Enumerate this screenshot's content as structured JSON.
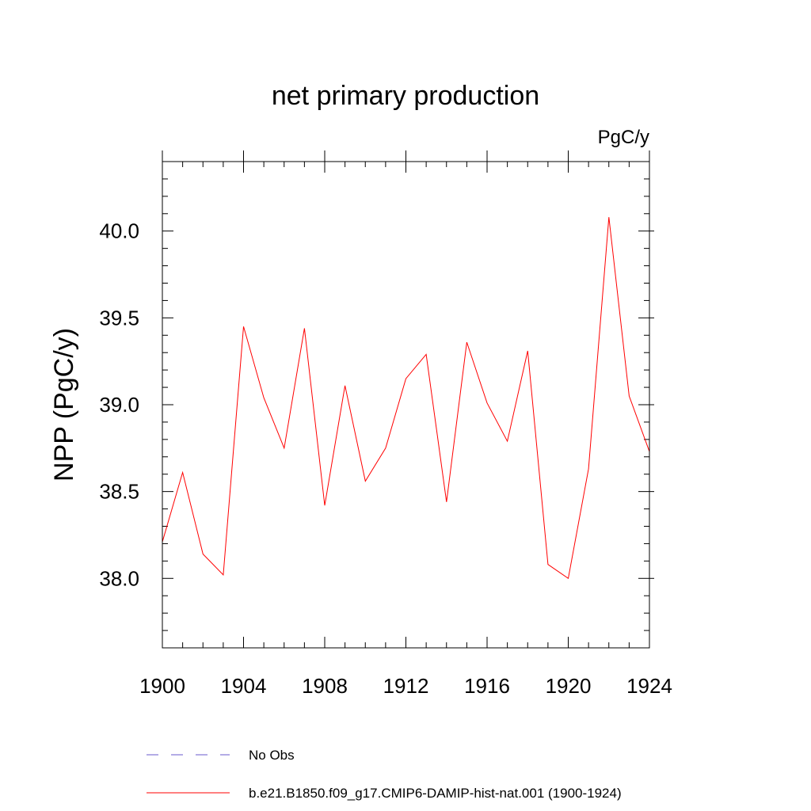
{
  "chart_data": {
    "type": "line",
    "title": "net primary production",
    "units_label": "PgC/y",
    "ylabel": "NPP  (PgC/y)",
    "xlabel": "",
    "xlim": [
      1900,
      1924
    ],
    "ylim": [
      37.6,
      40.4
    ],
    "x_ticks": [
      1900,
      1904,
      1908,
      1912,
      1916,
      1920,
      1924
    ],
    "x_tick_labels": [
      "1900",
      "1904",
      "1908",
      "1912",
      "1916",
      "1920",
      "1924"
    ],
    "y_ticks": [
      38.0,
      38.5,
      39.0,
      39.5,
      40.0
    ],
    "y_tick_labels": [
      "38.0",
      "38.5",
      "39.0",
      "39.5",
      "40.0"
    ],
    "grid": false,
    "legend_position": "bottom",
    "series": [
      {
        "name": "b.e21.B1850.f09_g17.CMIP6-DAMIP-hist-nat.001 (1900-1924)",
        "color": "#ff0000",
        "style": "solid",
        "x": [
          1900,
          1901,
          1902,
          1903,
          1904,
          1905,
          1906,
          1907,
          1908,
          1909,
          1910,
          1911,
          1912,
          1913,
          1914,
          1915,
          1916,
          1917,
          1918,
          1919,
          1920,
          1921,
          1922,
          1923,
          1924
        ],
        "values": [
          38.21,
          38.61,
          38.14,
          38.02,
          39.45,
          39.04,
          38.75,
          39.44,
          38.42,
          39.11,
          38.56,
          38.75,
          39.15,
          39.29,
          38.44,
          39.36,
          39.01,
          38.79,
          39.31,
          38.08,
          38.0,
          38.63,
          40.08,
          39.05,
          38.73
        ]
      }
    ],
    "legend": [
      {
        "label": "No Obs",
        "color": "#6a5acd",
        "style": "dashed"
      },
      {
        "label": "b.e21.B1850.f09_g17.CMIP6-DAMIP-hist-nat.001 (1900-1924)",
        "color": "#ff0000",
        "style": "solid"
      }
    ]
  }
}
